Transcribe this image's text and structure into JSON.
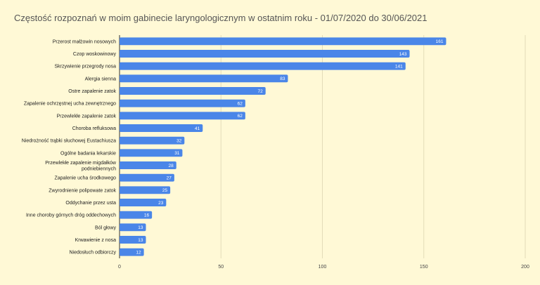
{
  "chart_data": {
    "type": "bar",
    "orientation": "horizontal",
    "title": "Częstość rozpoznań w moim gabinecie laryngologicznym w ostatnim roku - 01/07/2020 do 30/06/2021",
    "categories": [
      "Przerost małżowin nosowych",
      "Czop woskowinowy",
      "Skrzywienie przegrody nosa",
      "Alergia sienna",
      "Ostre zapalenie zatok",
      "Zapalenie ochrzęstnej ucha zewnętrznego",
      "Przewlekłe zapalenie zatok",
      "Choroba refluksowa",
      "Niedrożność trąbki słuchowej Eustachiusza",
      "Ogólne badania lekarskie",
      "Przewlekłe zapalenie migdałków podniebiennych",
      "Zapalenie ucha środkowego",
      "Zwyrodnienie polipowate zatok",
      "Oddychanie przez usta",
      "Inne choroby górnych dróg oddechowych",
      "Ból głowy",
      "Krwawienie z nosa",
      "Niedosłuch odbiorczy"
    ],
    "category_label_lines": [
      [
        "Przerost małżowin nosowych"
      ],
      [
        "Czop woskowinowy"
      ],
      [
        "Skrzywienie przegrody nosa"
      ],
      [
        "Alergia sienna"
      ],
      [
        "Ostre zapalenie zatok"
      ],
      [
        "Zapalenie ochrzęstnej ucha zewnętrznego"
      ],
      [
        "Przewlekłe zapalenie zatok"
      ],
      [
        "Choroba refluksowa"
      ],
      [
        "Niedrożność trąbki słuchowej Eustachiusza"
      ],
      [
        "Ogólne badania lekarskie"
      ],
      [
        "Przewlekłe zapalenie migdałków",
        "podniebiennych"
      ],
      [
        "Zapalenie ucha środkowego"
      ],
      [
        "Zwyrodnienie polipowate zatok"
      ],
      [
        "Oddychanie przez usta"
      ],
      [
        "Inne choroby górnych dróg oddechowych"
      ],
      [
        "Ból głowy"
      ],
      [
        "Krwawienie z nosa"
      ],
      [
        "Niedosłuch odbiorczy"
      ]
    ],
    "values": [
      161,
      143,
      141,
      83,
      72,
      62,
      62,
      41,
      32,
      31,
      28,
      27,
      25,
      23,
      16,
      13,
      13,
      12
    ],
    "xlim": [
      0,
      200
    ],
    "xticks": [
      0,
      50,
      100,
      150,
      200
    ],
    "xlabel": "",
    "ylabel": "",
    "grid": true,
    "data_labels": true,
    "legend": "none",
    "colors": {
      "bar": "#4a86e8",
      "background": "#fff9d6",
      "grid": "#e3dcb8",
      "title": "#555555"
    }
  }
}
